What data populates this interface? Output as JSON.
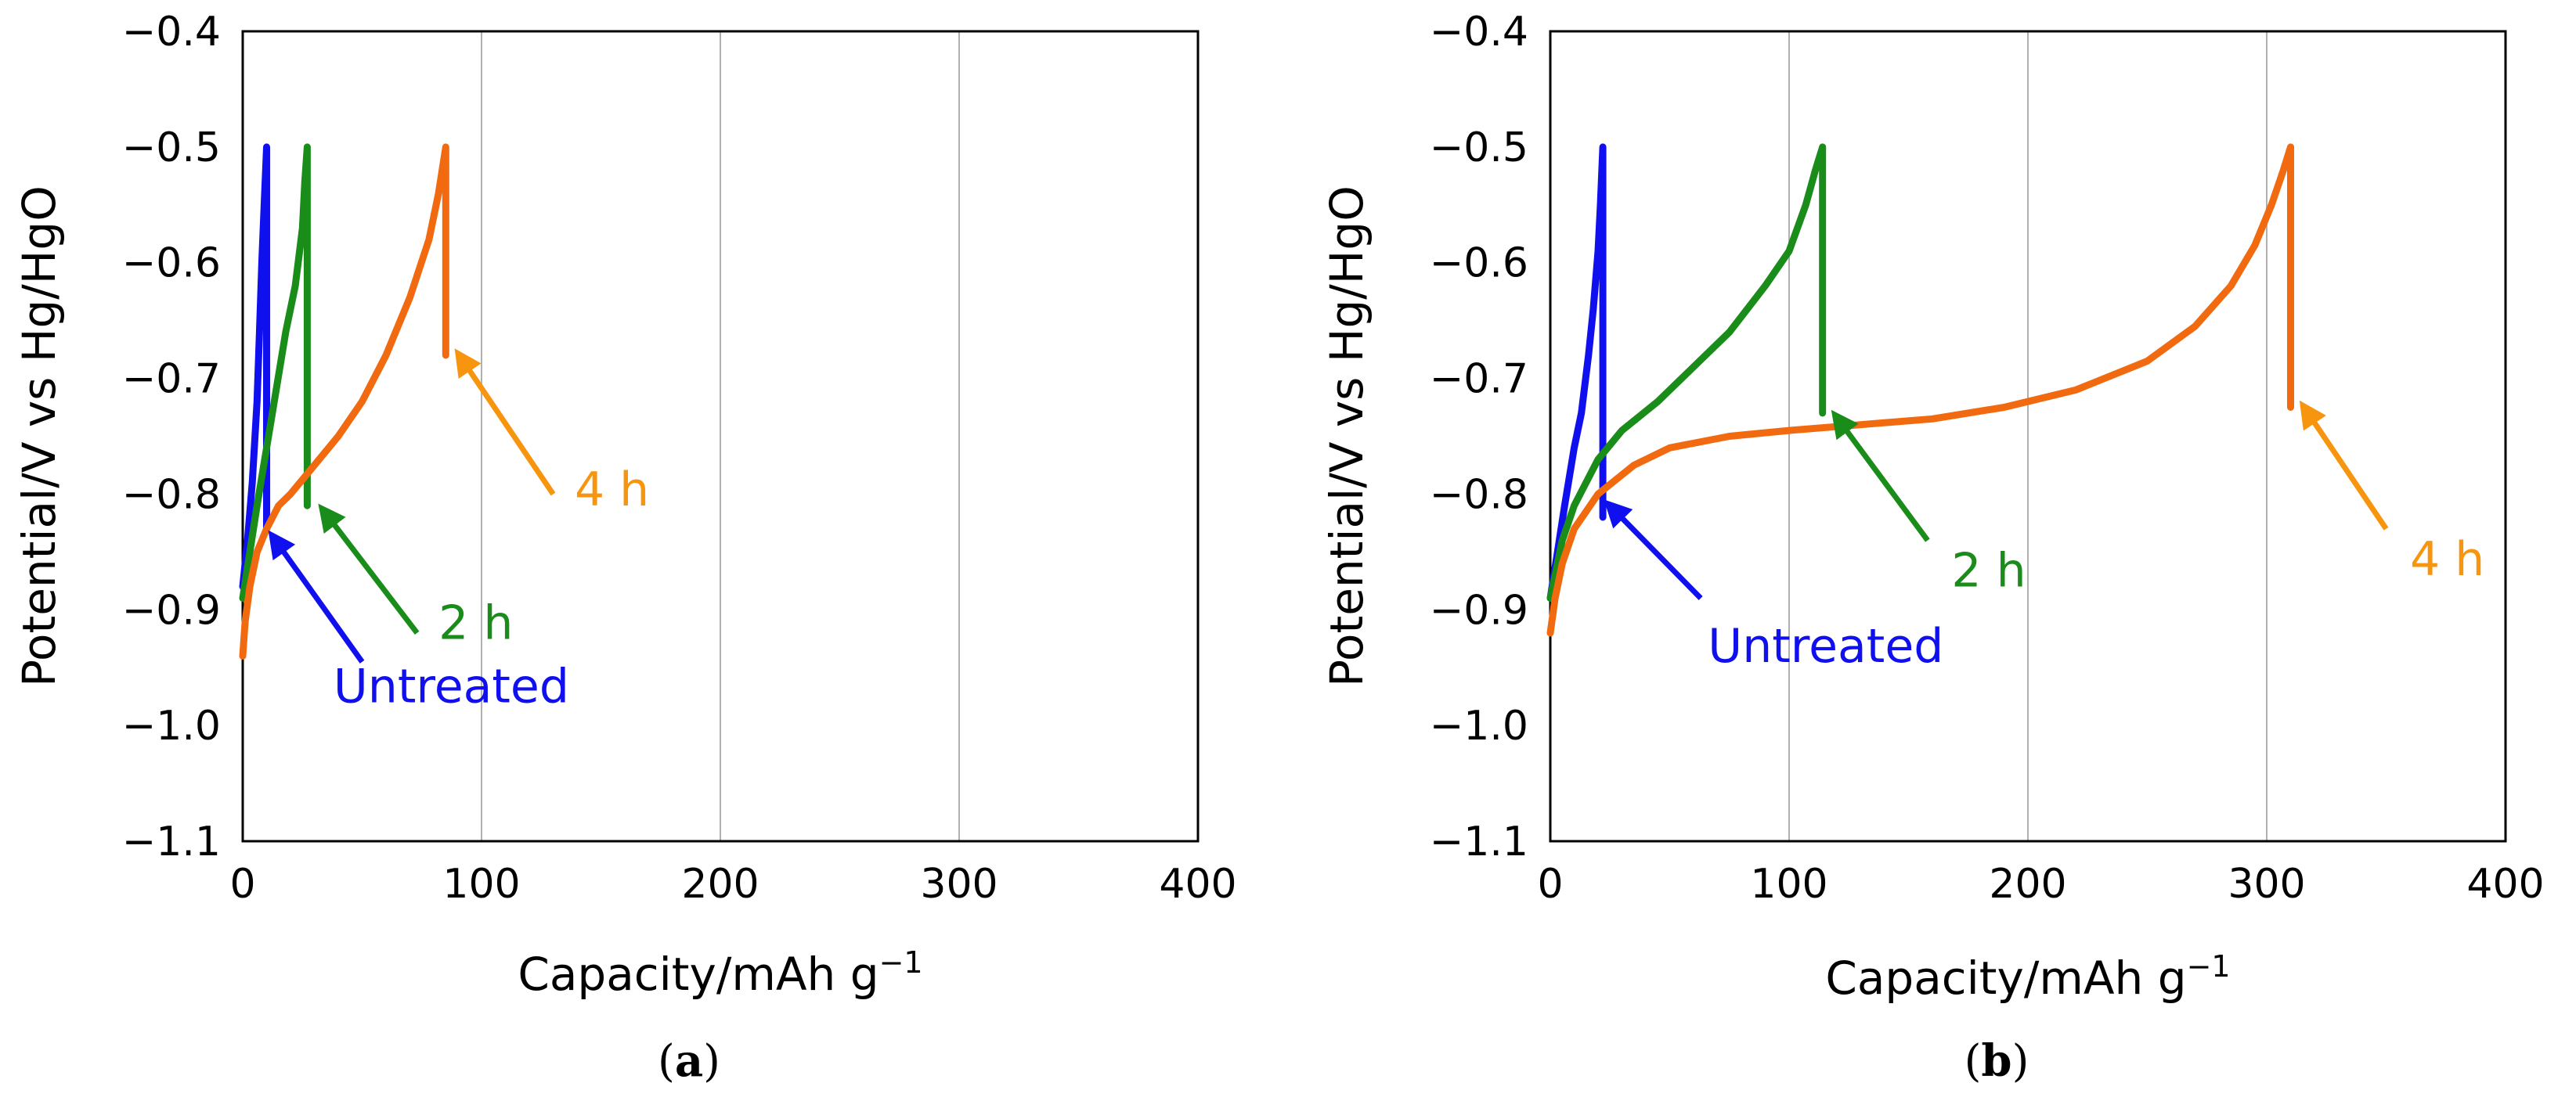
{
  "chart_data": [
    {
      "type": "line",
      "panel_label": "(a)",
      "sub_letter": "a",
      "xlabel": "Capacity/mAh g",
      "xlabel_sup": "−1",
      "ylabel": "Potential/V vs Hg/HgO",
      "xlim": [
        0,
        400
      ],
      "ylim": [
        -1.1,
        -0.4
      ],
      "x_ticks": [
        0,
        100,
        200,
        300,
        400
      ],
      "y_ticks": [
        -0.4,
        -0.5,
        -0.6,
        -0.7,
        -0.8,
        -0.9,
        -1.0,
        -1.1
      ],
      "x_tick_labels": [
        "0",
        "100",
        "200",
        "300",
        "400"
      ],
      "y_tick_labels": [
        "−0.4",
        "−0.5",
        "−0.6",
        "−0.7",
        "−0.8",
        "−0.9",
        "−1.0",
        "−1.1"
      ],
      "grid": "vertical",
      "series": [
        {
          "name": "Untreated",
          "color": "#1010ee",
          "x": [
            0,
            2,
            4,
            6,
            7,
            8,
            9,
            10,
            10,
            10
          ],
          "y": [
            -0.88,
            -0.84,
            -0.79,
            -0.72,
            -0.66,
            -0.6,
            -0.55,
            -0.5,
            -0.69,
            -0.83
          ]
        },
        {
          "name": "2 h",
          "color": "#1a8c1a",
          "x": [
            0,
            3,
            6,
            10,
            14,
            18,
            22,
            25,
            26,
            27,
            27,
            27
          ],
          "y": [
            -0.89,
            -0.85,
            -0.81,
            -0.76,
            -0.71,
            -0.66,
            -0.62,
            -0.57,
            -0.53,
            -0.5,
            -0.65,
            -0.81
          ]
        },
        {
          "name": "4 h",
          "color": "#f26a10",
          "x": [
            0,
            1,
            3,
            6,
            10,
            15,
            20,
            30,
            40,
            50,
            60,
            70,
            78,
            82,
            85,
            85,
            85
          ],
          "y": [
            -0.94,
            -0.91,
            -0.88,
            -0.85,
            -0.83,
            -0.81,
            -0.8,
            -0.775,
            -0.75,
            -0.72,
            -0.68,
            -0.63,
            -0.58,
            -0.54,
            -0.5,
            -0.6,
            -0.68
          ]
        }
      ],
      "annotations": [
        {
          "text": "Untreated",
          "color": "#1010ee",
          "anchor": "below arrow",
          "arrow_from": [
            50,
            -0.945
          ],
          "arrow_to": [
            12,
            -0.835
          ],
          "label_at": [
            38,
            -0.98
          ]
        },
        {
          "text": "2 h",
          "color": "#1a8c1a",
          "anchor": "right of arrow",
          "arrow_from": [
            73,
            -0.92
          ],
          "arrow_to": [
            33,
            -0.812
          ],
          "label_at": [
            82,
            -0.925
          ]
        },
        {
          "text": "4 h",
          "color": "#f7950e",
          "anchor": "right of arrow",
          "arrow_from": [
            130,
            -0.8
          ],
          "arrow_to": [
            90,
            -0.678
          ],
          "label_at": [
            139,
            -0.81
          ]
        }
      ]
    },
    {
      "type": "line",
      "panel_label": "(b)",
      "sub_letter": "b",
      "xlabel": "Capacity/mAh g",
      "xlabel_sup": "−1",
      "ylabel": "Potential/V vs Hg/HgO",
      "xlim": [
        0,
        400
      ],
      "ylim": [
        -1.1,
        -0.4
      ],
      "x_ticks": [
        0,
        100,
        200,
        300,
        400
      ],
      "y_ticks": [
        -0.4,
        -0.5,
        -0.6,
        -0.7,
        -0.8,
        -0.9,
        -1.0,
        -1.1
      ],
      "x_tick_labels": [
        "0",
        "100",
        "200",
        "300",
        "400"
      ],
      "y_tick_labels": [
        "−0.4",
        "−0.5",
        "−0.6",
        "−0.7",
        "−0.8",
        "−0.9",
        "−1.0",
        "−1.1"
      ],
      "grid": "vertical",
      "series": [
        {
          "name": "Untreated",
          "color": "#1010ee",
          "x": [
            0,
            3,
            6,
            10,
            13,
            16,
            18,
            20,
            21,
            22,
            22,
            22
          ],
          "y": [
            -0.89,
            -0.85,
            -0.81,
            -0.76,
            -0.73,
            -0.68,
            -0.64,
            -0.59,
            -0.55,
            -0.5,
            -0.66,
            -0.82
          ]
        },
        {
          "name": "2 h",
          "color": "#1a8c1a",
          "x": [
            0,
            5,
            10,
            20,
            30,
            45,
            60,
            75,
            90,
            100,
            107,
            111,
            114,
            114,
            114
          ],
          "y": [
            -0.89,
            -0.84,
            -0.81,
            -0.77,
            -0.745,
            -0.72,
            -0.69,
            -0.66,
            -0.62,
            -0.59,
            -0.55,
            -0.52,
            -0.5,
            -0.62,
            -0.73
          ]
        },
        {
          "name": "4 h",
          "color": "#f26a10",
          "x": [
            0,
            2,
            5,
            10,
            20,
            35,
            50,
            75,
            100,
            130,
            160,
            190,
            220,
            250,
            270,
            285,
            295,
            302,
            307,
            310,
            310,
            310
          ],
          "y": [
            -0.92,
            -0.89,
            -0.86,
            -0.83,
            -0.8,
            -0.775,
            -0.76,
            -0.75,
            -0.745,
            -0.74,
            -0.735,
            -0.725,
            -0.71,
            -0.685,
            -0.655,
            -0.62,
            -0.585,
            -0.55,
            -0.52,
            -0.5,
            -0.62,
            -0.725
          ]
        }
      ],
      "annotations": [
        {
          "text": "Untreated",
          "color": "#1010ee",
          "anchor": "below arrow",
          "arrow_from": [
            63,
            -0.89
          ],
          "arrow_to": [
            24,
            -0.808
          ],
          "label_at": [
            66,
            -0.945
          ]
        },
        {
          "text": "2 h",
          "color": "#1a8c1a",
          "anchor": "right of arrow",
          "arrow_from": [
            158,
            -0.84
          ],
          "arrow_to": [
            119,
            -0.731
          ],
          "label_at": [
            168,
            -0.88
          ]
        },
        {
          "text": "4 h",
          "color": "#f7950e",
          "anchor": "right of arrow",
          "arrow_from": [
            350,
            -0.83
          ],
          "arrow_to": [
            315,
            -0.723
          ],
          "label_at": [
            360,
            -0.87
          ]
        }
      ]
    }
  ]
}
